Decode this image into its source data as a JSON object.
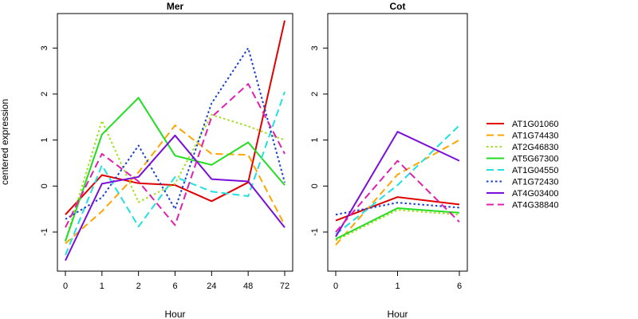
{
  "chart_data": {
    "type": "line",
    "ylabel": "centered expression",
    "legend_placement": "right",
    "legend": [
      {
        "name": "AT1G01060",
        "color": "#e00000",
        "dash": "solid"
      },
      {
        "name": "AT1G74430",
        "color": "#ffa500",
        "dash": "longdash"
      },
      {
        "name": "AT2G46830",
        "color": "#a0e020",
        "dash": "dotted"
      },
      {
        "name": "AT5G67300",
        "color": "#22dd22",
        "dash": "solid"
      },
      {
        "name": "AT1G04550",
        "color": "#22e0e0",
        "dash": "longdash"
      },
      {
        "name": "AT1G72430",
        "color": "#1a3fd0",
        "dash": "dotted"
      },
      {
        "name": "AT4G03400",
        "color": "#7a10d8",
        "dash": "solid"
      },
      {
        "name": "AT4G38840",
        "color": "#e020b0",
        "dash": "longdash"
      }
    ],
    "panels": [
      {
        "title": "Mer",
        "xlabel": "Hour",
        "categories": [
          "0",
          "1",
          "2",
          "6",
          "24",
          "48",
          "72"
        ],
        "ylim": [
          -1.85,
          3.75
        ],
        "yticks": [
          "-1",
          "0",
          "1",
          "2",
          "3"
        ],
        "series": [
          {
            "name": "AT1G01060",
            "values": [
              -0.62,
              0.24,
              0.06,
              0.02,
              -0.33,
              0.08,
              3.6
            ]
          },
          {
            "name": "AT1G74430",
            "values": [
              -1.25,
              -0.55,
              0.3,
              1.32,
              0.7,
              0.68,
              -0.85
            ]
          },
          {
            "name": "AT2G46830",
            "values": [
              -1.2,
              1.42,
              -0.35,
              0.05,
              1.55,
              1.3,
              1.0
            ]
          },
          {
            "name": "AT5G67300",
            "values": [
              -1.2,
              1.12,
              1.92,
              0.66,
              0.46,
              0.95,
              0.02
            ]
          },
          {
            "name": "AT1G04550",
            "values": [
              -1.5,
              0.45,
              -0.88,
              0.2,
              -0.12,
              -0.22,
              2.05
            ]
          },
          {
            "name": "AT1G72430",
            "values": [
              -0.72,
              -0.25,
              0.88,
              -0.5,
              1.8,
              3.0,
              0.08
            ]
          },
          {
            "name": "AT4G03400",
            "values": [
              -1.62,
              0.05,
              0.2,
              1.1,
              0.15,
              0.1,
              -0.9
            ]
          },
          {
            "name": "AT4G38840",
            "values": [
              -0.9,
              0.7,
              0.1,
              -0.85,
              1.5,
              2.22,
              0.7
            ]
          }
        ]
      },
      {
        "title": "Cot",
        "xlabel": "Hour",
        "categories": [
          "0",
          "1",
          "6"
        ],
        "ylim": [
          -1.85,
          3.75
        ],
        "yticks": [
          "-1",
          "0",
          "1",
          "2",
          "3"
        ],
        "series": [
          {
            "name": "AT1G01060",
            "values": [
              -0.75,
              -0.24,
              -0.4
            ]
          },
          {
            "name": "AT1G74430",
            "values": [
              -1.28,
              0.25,
              1.0
            ]
          },
          {
            "name": "AT2G46830",
            "values": [
              -1.18,
              -0.52,
              -0.62
            ]
          },
          {
            "name": "AT5G67300",
            "values": [
              -1.15,
              -0.48,
              -0.58
            ]
          },
          {
            "name": "AT1G04550",
            "values": [
              -1.05,
              0.02,
              1.32
            ]
          },
          {
            "name": "AT1G72430",
            "values": [
              -0.62,
              -0.36,
              -0.47
            ]
          },
          {
            "name": "AT4G03400",
            "values": [
              -1.1,
              1.18,
              0.55
            ]
          },
          {
            "name": "AT4G38840",
            "values": [
              -1.0,
              0.55,
              -0.78
            ]
          }
        ]
      }
    ]
  }
}
